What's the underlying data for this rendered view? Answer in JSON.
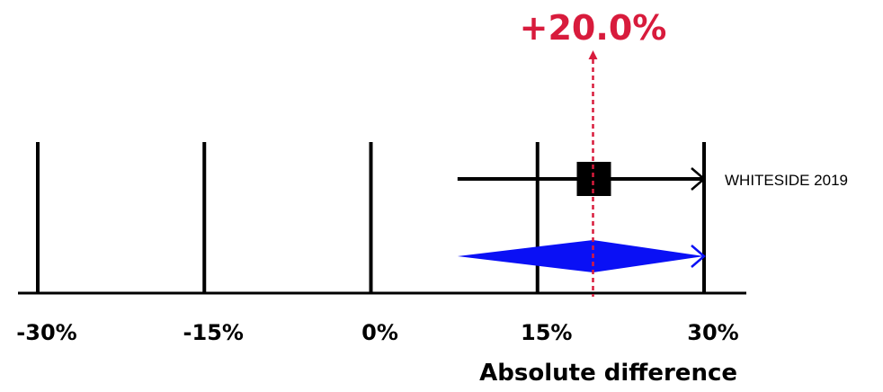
{
  "chart_data": {
    "type": "forest",
    "xlabel": "Absolute difference",
    "xlim": [
      -30,
      30
    ],
    "ticks": [
      -30,
      -15,
      0,
      15,
      30
    ],
    "tick_labels": [
      "-30%",
      "-15%",
      "0%",
      "15%",
      "30%"
    ],
    "pooled_effect": {
      "value": 20.0,
      "label": "+20.0%"
    },
    "studies": [
      {
        "name": "WHITESIDE 2019",
        "estimate": 20.0,
        "ci_low": 7.8,
        "ci_high": 30,
        "ci_high_truncated": true
      }
    ],
    "pooled_diamond": {
      "estimate": 20.0,
      "ci_low": 7.8,
      "ci_high": 30,
      "ci_high_truncated": true
    },
    "colors": {
      "effect_line": "#d81b3c",
      "diamond": "#0a10f5",
      "study_marker": "#000000",
      "axis": "#000000"
    }
  }
}
